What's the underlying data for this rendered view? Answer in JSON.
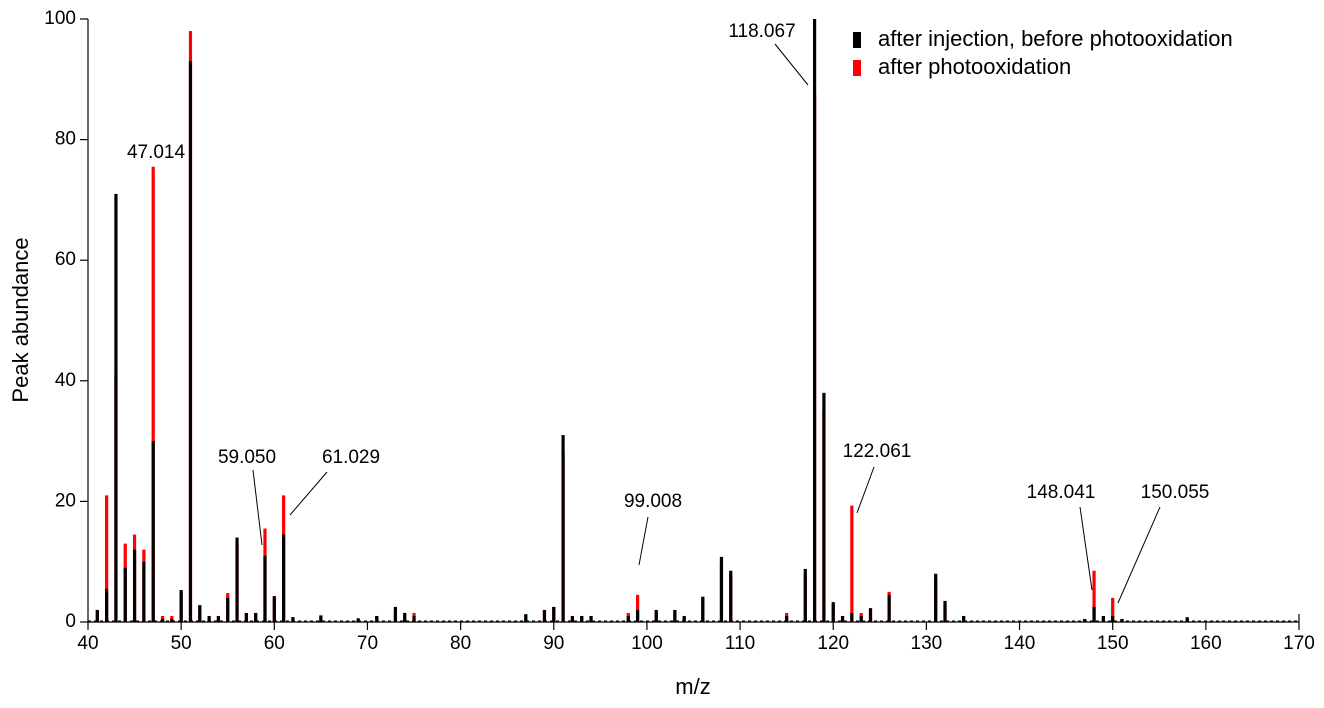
{
  "chart_data": {
    "type": "stick",
    "xlabel": "m/z",
    "ylabel": "Peak abundance",
    "xlim": [
      40,
      170
    ],
    "xticks": [
      40,
      50,
      60,
      70,
      80,
      90,
      100,
      110,
      120,
      130,
      140,
      150,
      160,
      170
    ],
    "ylim": [
      0,
      100
    ],
    "yticks": [
      0,
      20,
      40,
      60,
      80,
      100
    ],
    "legend": "upper right",
    "x": [
      41,
      42,
      43,
      44,
      45,
      46,
      47,
      48,
      49,
      50,
      51,
      52,
      53,
      54,
      55,
      56,
      57,
      58,
      59,
      60,
      61,
      62,
      65,
      69,
      71,
      73,
      74,
      75,
      87,
      89,
      90,
      91,
      92,
      93,
      94,
      98,
      99,
      101,
      103,
      104,
      106,
      108,
      109,
      115,
      117,
      118,
      119,
      120,
      121,
      122,
      123,
      124,
      126,
      131,
      132,
      134,
      147,
      148,
      149,
      150,
      151,
      158
    ],
    "series": [
      {
        "name": "after photooxidation",
        "color": "#ff0000",
        "values": [
          2,
          21,
          41,
          13,
          14.5,
          12,
          75.5,
          1,
          1,
          5,
          98,
          2.5,
          1,
          1,
          4.8,
          13,
          1.5,
          1.5,
          15.5,
          4,
          21,
          0.8,
          1,
          0.6,
          1,
          2,
          1.5,
          1.5,
          1.2,
          2,
          2.5,
          28,
          1,
          1,
          1,
          1.5,
          4.5,
          1.8,
          1.8,
          1,
          4,
          10,
          8,
          1.5,
          8,
          87.5,
          35,
          3,
          1,
          19.3,
          1.5,
          2,
          5,
          7,
          3,
          1,
          0.5,
          8.5,
          1,
          4,
          0.5,
          0.6
        ]
      },
      {
        "name": "after injection, before photooxidation",
        "color": "#000000",
        "values": [
          2,
          5.5,
          71,
          9,
          12,
          10,
          30,
          0.5,
          0.5,
          5.3,
          93,
          2.8,
          1,
          1,
          4,
          14,
          1.5,
          1.5,
          11,
          4.3,
          14.5,
          0.8,
          1.1,
          0.6,
          1,
          2.5,
          1.5,
          1,
          1.3,
          2,
          2.5,
          31,
          1,
          1,
          1,
          1,
          2,
          2,
          2,
          1,
          4.2,
          10.8,
          8.5,
          1,
          8.8,
          100,
          38,
          3.3,
          1,
          1.5,
          1,
          2.3,
          4.5,
          8,
          3.5,
          1,
          0.5,
          2.5,
          1,
          1,
          0.5,
          0.8
        ]
      }
    ],
    "annotations": [
      "47.014",
      "59.050",
      "61.029",
      "99.008",
      "118.067",
      "122.061",
      "148.041",
      "150.055"
    ]
  }
}
